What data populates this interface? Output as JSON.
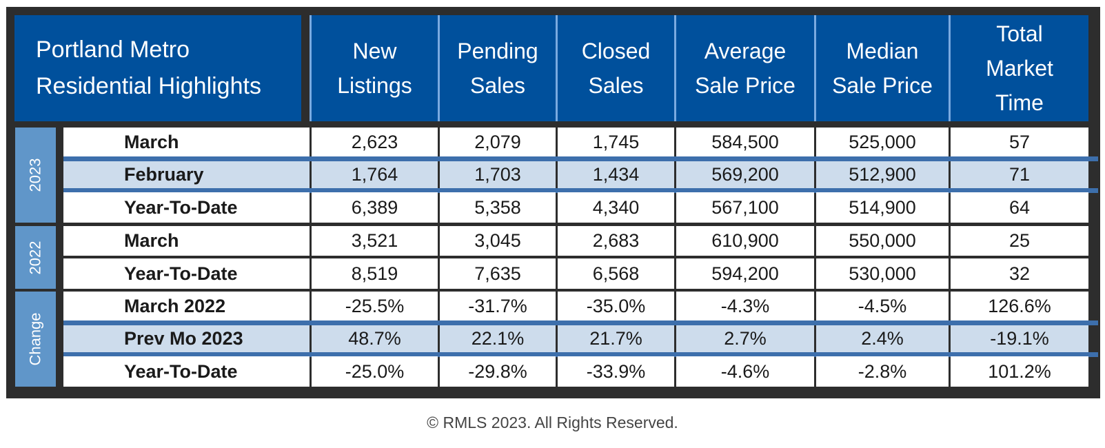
{
  "header": {
    "title": "Portland Metro\nResidential Highlights",
    "columns": [
      "New\nListings",
      "Pending\nSales",
      "Closed\nSales",
      "Average\nSale Price",
      "Median\nSale Price",
      "Total\nMarket\nTime"
    ]
  },
  "groups": [
    {
      "label": "2023",
      "rows": [
        {
          "label": "March",
          "values": [
            "2,623",
            "2,079",
            "1,745",
            "584,500",
            "525,000",
            "57"
          ],
          "shaded": false
        },
        {
          "label": "February",
          "values": [
            "1,764",
            "1,703",
            "1,434",
            "569,200",
            "512,900",
            "71"
          ],
          "shaded": true
        },
        {
          "label": "Year-To-Date",
          "values": [
            "6,389",
            "5,358",
            "4,340",
            "567,100",
            "514,900",
            "64"
          ],
          "shaded": false
        }
      ]
    },
    {
      "label": "2022",
      "rows": [
        {
          "label": "March",
          "values": [
            "3,521",
            "3,045",
            "2,683",
            "610,900",
            "550,000",
            "25"
          ],
          "shaded": false
        },
        {
          "label": "Year-To-Date",
          "values": [
            "8,519",
            "7,635",
            "6,568",
            "594,200",
            "530,000",
            "32"
          ],
          "shaded": false
        }
      ]
    },
    {
      "label": "Change",
      "rows": [
        {
          "label": "March 2022",
          "values": [
            "-25.5%",
            "-31.7%",
            "-35.0%",
            "-4.3%",
            "-4.5%",
            "126.6%"
          ],
          "shaded": false
        },
        {
          "label": "Prev Mo 2023",
          "values": [
            "48.7%",
            "22.1%",
            "21.7%",
            "2.7%",
            "2.4%",
            "-19.1%"
          ],
          "shaded": true
        },
        {
          "label": "Year-To-Date",
          "values": [
            "-25.0%",
            "-29.8%",
            "-33.9%",
            "-4.6%",
            "-2.8%",
            "101.2%"
          ],
          "shaded": false
        }
      ]
    }
  ],
  "footer": "© RMLS 2023. All Rights Reserved.",
  "colors": {
    "header_bg": "#00509c",
    "year_label_bg": "#6096c9",
    "shaded_row": "#cddcec",
    "row_separator": "#3d6fac",
    "frame": "#2d2d2d"
  }
}
